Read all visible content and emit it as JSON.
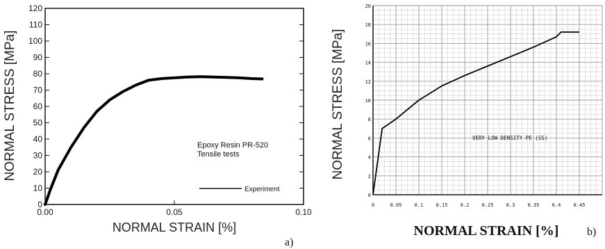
{
  "chart_data": [
    {
      "type": "line",
      "panel_label": "a)",
      "xlabel": "NORMAL STRAIN [%]",
      "ylabel": "NORMAL STRESS [MPa]",
      "xlim": [
        0,
        0.1
      ],
      "ylim": [
        0,
        120
      ],
      "x_ticks": [
        0,
        0.05,
        0.1
      ],
      "x_tick_labels": [
        "0.00",
        "0.05",
        "0.10"
      ],
      "y_ticks": [
        0,
        10,
        20,
        30,
        40,
        50,
        60,
        70,
        80,
        90,
        100,
        110,
        120
      ],
      "y_tick_labels": [
        "0",
        "10",
        "20",
        "30",
        "40",
        "50",
        "60",
        "70",
        "80",
        "90",
        "100",
        "110",
        "120"
      ],
      "grid": false,
      "annotation_lines": [
        "Epoxy Resin PR-520",
        "Tensile tests"
      ],
      "legend": {
        "placement": "bottom-right",
        "entries": [
          "Experiment"
        ]
      },
      "series": [
        {
          "name": "Experiment",
          "x": [
            0,
            0.002,
            0.005,
            0.01,
            0.015,
            0.02,
            0.025,
            0.03,
            0.035,
            0.04,
            0.045,
            0.05,
            0.055,
            0.06,
            0.065,
            0.07,
            0.075,
            0.08,
            0.084
          ],
          "y": [
            0,
            9,
            21,
            35,
            47,
            57,
            64,
            69,
            73,
            76,
            77,
            77.5,
            78,
            78.2,
            78,
            77.8,
            77.5,
            77,
            76.8
          ]
        }
      ]
    },
    {
      "type": "line",
      "panel_label": "b)",
      "xlabel": "NORMAL STRAIN [%]",
      "ylabel": "NORMAL STRESS [MPa]",
      "xlim": [
        0,
        0.5
      ],
      "ylim": [
        0,
        20
      ],
      "x_ticks": [
        0,
        0.05,
        0.1,
        0.15,
        0.2,
        0.25,
        0.3,
        0.35,
        0.4,
        0.45
      ],
      "x_tick_labels": [
        "0",
        "0.05",
        "0.1",
        "0.15",
        "0.2",
        "0.25",
        "0.3",
        "0.35",
        "0.4",
        "0.45"
      ],
      "y_ticks": [
        0,
        2,
        4,
        6,
        8,
        10,
        12,
        14,
        16,
        18,
        20
      ],
      "y_tick_labels": [
        "0",
        "2",
        "4",
        "6",
        "8",
        "10",
        "12",
        "14",
        "16",
        "18",
        "20"
      ],
      "grid": true,
      "annotation_lines": [
        "VERY LOW DENSITY PE (SS)"
      ],
      "series": [
        {
          "x": [
            0,
            0.02,
            0.05,
            0.1,
            0.15,
            0.2,
            0.25,
            0.3,
            0.35,
            0.4,
            0.41,
            0.45
          ],
          "y": [
            0,
            7,
            8,
            10,
            11.5,
            12.6,
            13.6,
            14.6,
            15.6,
            16.7,
            17.2,
            17.2
          ]
        }
      ]
    }
  ]
}
